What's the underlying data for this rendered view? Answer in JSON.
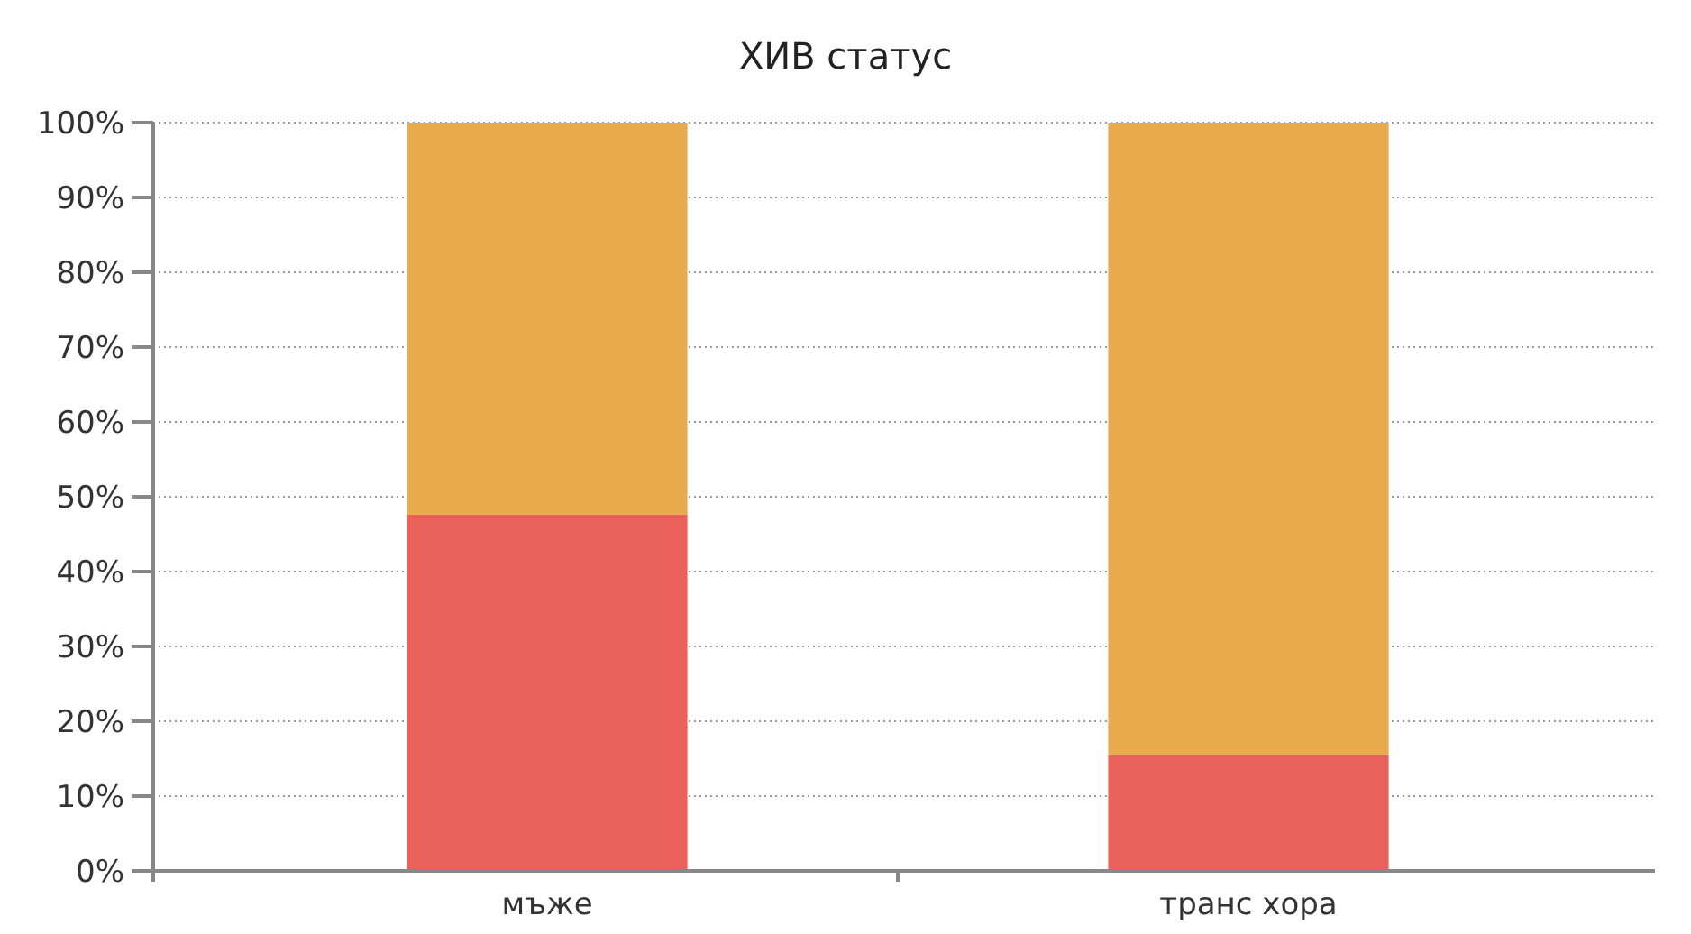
{
  "chart_data": {
    "type": "bar",
    "title": "ХИВ статус",
    "categories": [
      "мъже",
      "транс хора"
    ],
    "stacked": true,
    "series": [
      {
        "color": "#eb625c",
        "values": [
          47.6,
          15.5
        ]
      },
      {
        "color": "#e9ab4e",
        "values": [
          52.4,
          84.5
        ]
      }
    ],
    "ylim": [
      0,
      100
    ],
    "yticks": [
      {
        "value": 0,
        "label": "0%"
      },
      {
        "value": 10,
        "label": "10%"
      },
      {
        "value": 20,
        "label": "20%"
      },
      {
        "value": 30,
        "label": "30%"
      },
      {
        "value": 40,
        "label": "40%"
      },
      {
        "value": 50,
        "label": "50%"
      },
      {
        "value": 60,
        "label": "60%"
      },
      {
        "value": 70,
        "label": "70%"
      },
      {
        "value": 80,
        "label": "80%"
      },
      {
        "value": 90,
        "label": "90%"
      },
      {
        "value": 100,
        "label": "100%"
      }
    ],
    "grid": "y"
  }
}
